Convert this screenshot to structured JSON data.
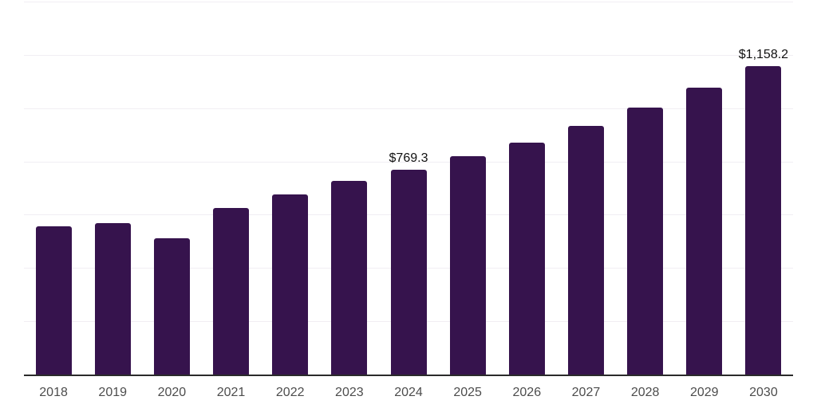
{
  "chart_data": {
    "type": "bar",
    "title": "",
    "categories": [
      "2018",
      "2019",
      "2020",
      "2021",
      "2022",
      "2023",
      "2024",
      "2025",
      "2026",
      "2027",
      "2028",
      "2029",
      "2030"
    ],
    "values": [
      556,
      568,
      511,
      625,
      676,
      727,
      769.3,
      820,
      870,
      932,
      1002,
      1077,
      1158.2
    ],
    "point_labels": [
      "",
      "",
      "",
      "",
      "",
      "",
      "$769.3",
      "",
      "",
      "",
      "",
      "",
      "$1,158.2"
    ],
    "xlabel": "",
    "ylabel": "",
    "ylim": [
      0,
      1400
    ],
    "gridline_step": 200,
    "grid": "horizontal",
    "legend": "none",
    "colors": {
      "bar": "#36134d",
      "gridline": "#f1eef3",
      "axis_line": "#2b2b2b",
      "tick_label": "#4d4d4d",
      "value_label": "#111111",
      "background": "#ffffff"
    }
  }
}
